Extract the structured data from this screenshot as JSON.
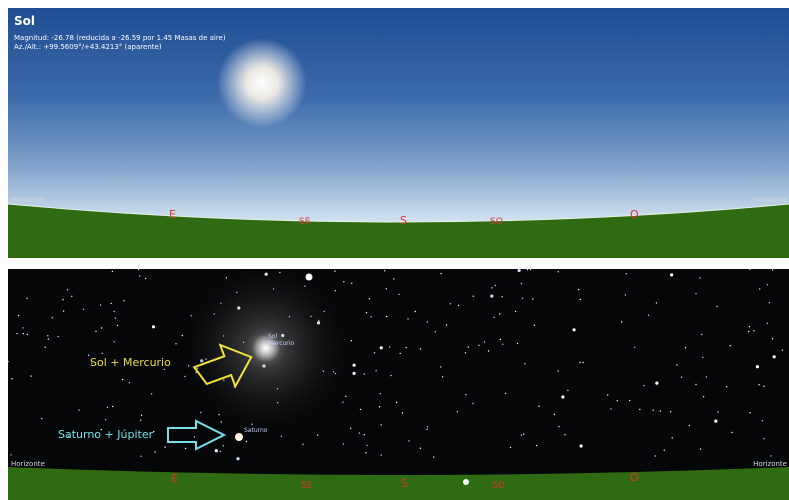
{
  "top": {
    "object_name": "Sol",
    "magnitude_line": "Magnitud: -26.78 (reducida a -26.59 por 1.45 Masas de aire)",
    "azalt_line": "Az./Alt.: +99.5609°/+43.4213° (aparente)"
  },
  "horizon_label": "Horizonte",
  "cardinals": {
    "e": "E",
    "se": "SE",
    "s": "S",
    "so": "SO",
    "o": "O"
  },
  "bottom": {
    "sun_label": "Sol",
    "mercury_label": "Mercurio",
    "saturn_label": "Saturno",
    "annotation_sun": "Sol  + Mercurio",
    "annotation_saturn": "Saturno + Júpiter"
  },
  "colors": {
    "sky_top": "#1f4d92",
    "ground": "#2e6b12",
    "cardinal": "#d33333",
    "arrow_yellow": "#f2df3a",
    "arrow_cyan": "#76e0ea"
  }
}
